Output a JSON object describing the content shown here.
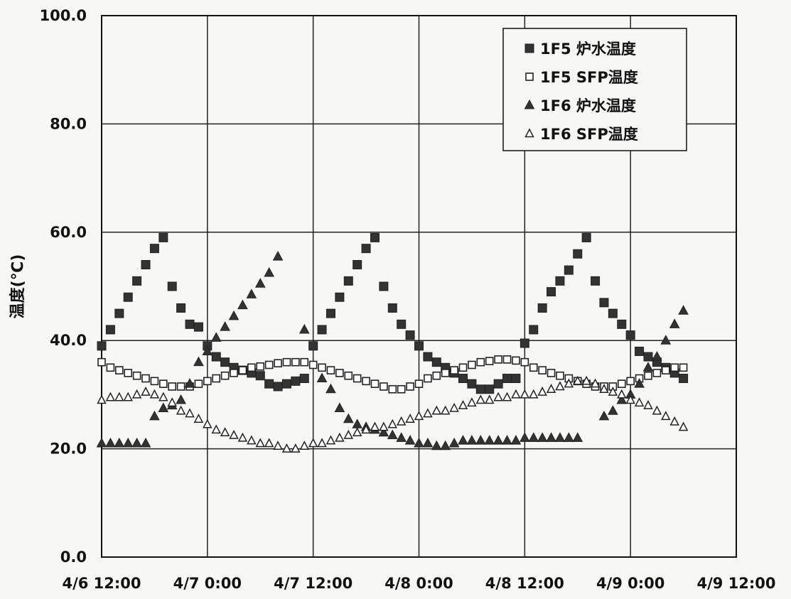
{
  "chart_data": {
    "type": "scatter",
    "title": "",
    "xlabel": "",
    "ylabel": "温度(℃)",
    "ylim": [
      0,
      100
    ],
    "xlim": [
      "4/6 12:00",
      "4/9 12:00"
    ],
    "x_unit": "hours",
    "x_ticks": [
      "4/6 12:00",
      "4/7 0:00",
      "4/7 12:00",
      "4/8 0:00",
      "4/8 12:00",
      "4/9 0:00",
      "4/9 12:00"
    ],
    "y_ticks": [
      "0.0",
      "20.0",
      "40.0",
      "60.0",
      "80.0",
      "100.0"
    ],
    "grid": true,
    "legend_position": "top-right",
    "series": [
      {
        "name": "1F5 炉水温度",
        "marker": "filled-square",
        "color": "#333333",
        "x": [
          "4/6 12:00",
          "4/6 13:00",
          "4/6 14:00",
          "4/6 15:00",
          "4/6 16:00",
          "4/6 17:00",
          "4/6 18:00",
          "4/6 19:00",
          "4/6 20:00",
          "4/6 21:00",
          "4/6 22:00",
          "4/6 23:00",
          "4/7 0:00",
          "4/7 1:00",
          "4/7 2:00",
          "4/7 3:00",
          "4/7 4:00",
          "4/7 5:00",
          "4/7 6:00",
          "4/7 7:00",
          "4/7 8:00",
          "4/7 9:00",
          "4/7 10:00",
          "4/7 11:00",
          "4/7 12:00",
          "4/7 13:00",
          "4/7 14:00",
          "4/7 15:00",
          "4/7 16:00",
          "4/7 17:00",
          "4/7 18:00",
          "4/7 19:00",
          "4/7 20:00",
          "4/7 21:00",
          "4/7 22:00",
          "4/7 23:00",
          "4/8 0:00",
          "4/8 1:00",
          "4/8 2:00",
          "4/8 3:00",
          "4/8 4:00",
          "4/8 5:00",
          "4/8 6:00",
          "4/8 7:00",
          "4/8 8:00",
          "4/8 9:00",
          "4/8 10:00",
          "4/8 11:00",
          "4/8 12:00",
          "4/8 13:00",
          "4/8 14:00",
          "4/8 15:00",
          "4/8 16:00",
          "4/8 17:00",
          "4/8 18:00",
          "4/8 19:00",
          "4/8 20:00",
          "4/8 21:00",
          "4/8 22:00",
          "4/8 23:00",
          "4/9 0:00",
          "4/9 1:00",
          "4/9 2:00",
          "4/9 3:00",
          "4/9 4:00",
          "4/9 5:00",
          "4/9 6:00"
        ],
        "values": [
          39,
          42,
          45,
          48,
          51,
          54,
          57,
          59,
          50,
          46,
          43,
          42.5,
          39,
          37,
          36,
          35,
          34.5,
          34,
          33.5,
          32,
          31.5,
          32,
          32.5,
          33,
          39,
          42,
          45,
          48,
          51,
          54,
          57,
          59,
          50,
          46,
          43,
          41,
          39,
          37,
          36,
          35,
          34,
          33,
          32,
          31,
          31,
          32,
          33,
          33,
          39.5,
          42,
          46,
          49,
          51,
          53,
          56,
          59,
          51,
          47,
          45,
          43,
          41,
          38,
          37,
          36,
          35,
          34,
          33
        ]
      },
      {
        "name": "1F5 SFP温度",
        "marker": "open-square",
        "color": "#333333",
        "x": [
          "4/6 12:00",
          "4/6 13:00",
          "4/6 14:00",
          "4/6 15:00",
          "4/6 16:00",
          "4/6 17:00",
          "4/6 18:00",
          "4/6 19:00",
          "4/6 20:00",
          "4/6 21:00",
          "4/6 22:00",
          "4/6 23:00",
          "4/7 0:00",
          "4/7 1:00",
          "4/7 2:00",
          "4/7 3:00",
          "4/7 4:00",
          "4/7 5:00",
          "4/7 6:00",
          "4/7 7:00",
          "4/7 8:00",
          "4/7 9:00",
          "4/7 10:00",
          "4/7 11:00",
          "4/7 12:00",
          "4/7 13:00",
          "4/7 14:00",
          "4/7 15:00",
          "4/7 16:00",
          "4/7 17:00",
          "4/7 18:00",
          "4/7 19:00",
          "4/7 20:00",
          "4/7 21:00",
          "4/7 22:00",
          "4/7 23:00",
          "4/8 0:00",
          "4/8 1:00",
          "4/8 2:00",
          "4/8 3:00",
          "4/8 4:00",
          "4/8 5:00",
          "4/8 6:00",
          "4/8 7:00",
          "4/8 8:00",
          "4/8 9:00",
          "4/8 10:00",
          "4/8 11:00",
          "4/8 12:00",
          "4/8 13:00",
          "4/8 14:00",
          "4/8 15:00",
          "4/8 16:00",
          "4/8 17:00",
          "4/8 18:00",
          "4/8 19:00",
          "4/8 20:00",
          "4/8 21:00",
          "4/8 22:00",
          "4/8 23:00",
          "4/9 0:00",
          "4/9 1:00",
          "4/9 2:00",
          "4/9 3:00",
          "4/9 4:00",
          "4/9 5:00",
          "4/9 6:00"
        ],
        "values": [
          36,
          35,
          34.5,
          34,
          33.5,
          33,
          32.5,
          32,
          31.5,
          31.5,
          31.5,
          32,
          32.5,
          33,
          33.5,
          34,
          34.5,
          35,
          35.2,
          35.5,
          35.8,
          36,
          36,
          36,
          35.5,
          35,
          34.5,
          34,
          33.5,
          33,
          32.5,
          32,
          31.5,
          31,
          31,
          31.5,
          32,
          33,
          33.5,
          34,
          34.5,
          35,
          35.5,
          36,
          36.2,
          36.5,
          36.5,
          36.3,
          36,
          35,
          34.5,
          34,
          33.5,
          33,
          32.5,
          32,
          31.5,
          31.5,
          31.5,
          32,
          32.5,
          33,
          33.5,
          34,
          34.5,
          35,
          35
        ]
      },
      {
        "name": "1F6 炉水温度",
        "marker": "filled-triangle",
        "color": "#333333",
        "x": [
          "4/6 12:00",
          "4/6 13:00",
          "4/6 14:00",
          "4/6 15:00",
          "4/6 16:00",
          "4/6 17:00",
          "4/6 18:00",
          "4/6 19:00",
          "4/6 20:00",
          "4/6 21:00",
          "4/6 22:00",
          "4/6 23:00",
          "4/7 0:00",
          "4/7 1:00",
          "4/7 2:00",
          "4/7 3:00",
          "4/7 4:00",
          "4/7 5:00",
          "4/7 6:00",
          "4/7 7:00",
          "4/7 8:00",
          "4/7 9:00",
          "4/7 10:00",
          "4/7 11:00",
          "4/7 12:00",
          "4/7 13:00",
          "4/7 14:00",
          "4/7 15:00",
          "4/7 16:00",
          "4/7 17:00",
          "4/7 18:00",
          "4/7 19:00",
          "4/7 20:00",
          "4/7 21:00",
          "4/7 22:00",
          "4/7 23:00",
          "4/8 0:00",
          "4/8 1:00",
          "4/8 2:00",
          "4/8 3:00",
          "4/8 4:00",
          "4/8 5:00",
          "4/8 6:00",
          "4/8 7:00",
          "4/8 8:00",
          "4/8 9:00",
          "4/8 10:00",
          "4/8 11:00",
          "4/8 12:00",
          "4/8 13:00",
          "4/8 14:00",
          "4/8 15:00",
          "4/8 16:00",
          "4/8 17:00",
          "4/8 18:00",
          "4/8 19:00",
          "4/8 20:00",
          "4/8 21:00",
          "4/8 22:00",
          "4/8 23:00",
          "4/9 0:00",
          "4/9 1:00",
          "4/9 2:00",
          "4/9 3:00",
          "4/9 4:00",
          "4/9 5:00",
          "4/9 6:00"
        ],
        "values": [
          21,
          21,
          21,
          21,
          21,
          21,
          26,
          27.5,
          28,
          29,
          32,
          36,
          38,
          40.5,
          42.5,
          44.5,
          46.5,
          48.5,
          50.5,
          52.5,
          55.5,
          null,
          null,
          42,
          null,
          33,
          31,
          27.5,
          25.5,
          24.5,
          24,
          23.5,
          23,
          22.5,
          22,
          21.5,
          21,
          21,
          20.5,
          20.5,
          21,
          21.5,
          21.5,
          21.5,
          21.5,
          21.5,
          21.5,
          21.5,
          22,
          22,
          22,
          22,
          22,
          22,
          22,
          null,
          null,
          26,
          27,
          29,
          30,
          32,
          35,
          37,
          40,
          43,
          45.5
        ]
      },
      {
        "name": "1F6 SFP温度",
        "marker": "open-triangle",
        "color": "#333333",
        "x": [
          "4/6 12:00",
          "4/6 13:00",
          "4/6 14:00",
          "4/6 15:00",
          "4/6 16:00",
          "4/6 17:00",
          "4/6 18:00",
          "4/6 19:00",
          "4/6 20:00",
          "4/6 21:00",
          "4/6 22:00",
          "4/6 23:00",
          "4/7 0:00",
          "4/7 1:00",
          "4/7 2:00",
          "4/7 3:00",
          "4/7 4:00",
          "4/7 5:00",
          "4/7 6:00",
          "4/7 7:00",
          "4/7 8:00",
          "4/7 9:00",
          "4/7 10:00",
          "4/7 11:00",
          "4/7 12:00",
          "4/7 13:00",
          "4/7 14:00",
          "4/7 15:00",
          "4/7 16:00",
          "4/7 17:00",
          "4/7 18:00",
          "4/7 19:00",
          "4/7 20:00",
          "4/7 21:00",
          "4/7 22:00",
          "4/7 23:00",
          "4/8 0:00",
          "4/8 1:00",
          "4/8 2:00",
          "4/8 3:00",
          "4/8 4:00",
          "4/8 5:00",
          "4/8 6:00",
          "4/8 7:00",
          "4/8 8:00",
          "4/8 9:00",
          "4/8 10:00",
          "4/8 11:00",
          "4/8 12:00",
          "4/8 13:00",
          "4/8 14:00",
          "4/8 15:00",
          "4/8 16:00",
          "4/8 17:00",
          "4/8 18:00",
          "4/8 19:00",
          "4/8 20:00",
          "4/8 21:00",
          "4/8 22:00",
          "4/8 23:00",
          "4/9 0:00",
          "4/9 1:00",
          "4/9 2:00",
          "4/9 3:00",
          "4/9 4:00",
          "4/9 5:00",
          "4/9 6:00"
        ],
        "values": [
          29,
          29.5,
          29.5,
          29.5,
          30,
          30.5,
          30,
          29.5,
          28.5,
          27,
          26.5,
          25.5,
          24.5,
          23.5,
          23,
          22.5,
          22,
          21.5,
          21,
          21,
          20.5,
          20,
          20,
          20.5,
          21,
          21,
          21.5,
          22,
          22.5,
          23,
          23.5,
          24,
          24,
          24.5,
          25,
          25.5,
          26,
          26.5,
          27,
          27,
          27.5,
          28,
          28.5,
          29,
          29,
          29.5,
          29.5,
          30,
          30,
          30,
          30.5,
          31,
          31.5,
          32,
          32.5,
          32.5,
          32,
          31,
          30.5,
          30,
          29,
          28.5,
          28,
          27,
          26,
          25,
          24
        ]
      }
    ]
  }
}
